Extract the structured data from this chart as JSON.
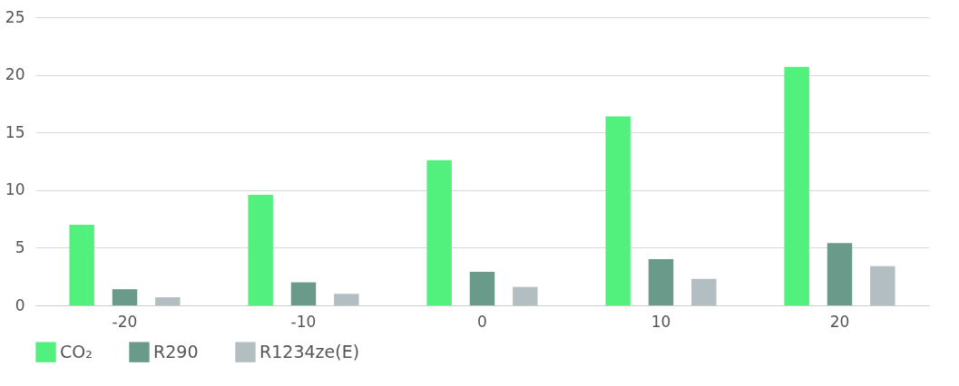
{
  "chart_data": {
    "type": "bar",
    "categories": [
      "-20",
      "-10",
      "0",
      "10",
      "20"
    ],
    "series": [
      {
        "name": "CO₂",
        "color": "#52f17e",
        "values": [
          7.0,
          9.6,
          12.6,
          16.4,
          20.7
        ]
      },
      {
        "name": "R290",
        "color": "#6a9a8a",
        "values": [
          1.4,
          2.0,
          2.9,
          4.0,
          5.4
        ]
      },
      {
        "name": "R1234ze(E)",
        "color": "#b3bec3",
        "values": [
          0.7,
          1.0,
          1.6,
          2.3,
          3.4
        ]
      }
    ],
    "ylim": [
      0,
      25
    ],
    "yticks": [
      0,
      5,
      10,
      15,
      20,
      25
    ],
    "grid": "y",
    "legend": "bottom"
  }
}
